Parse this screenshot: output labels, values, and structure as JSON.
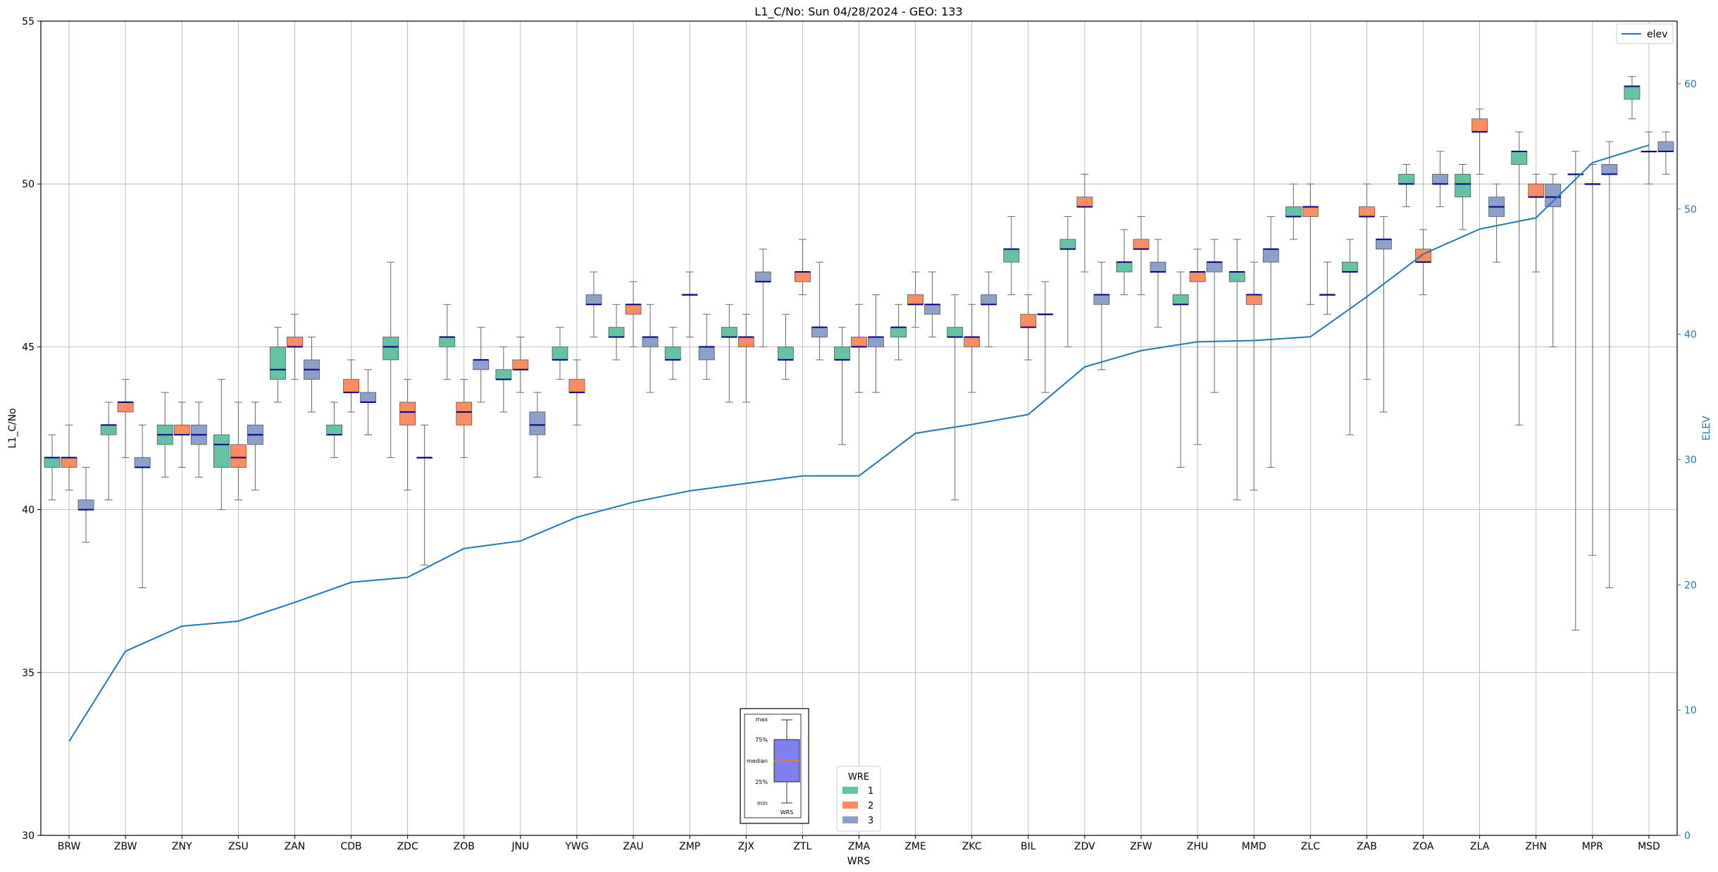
{
  "chart_data": {
    "type": "box",
    "title": "L1_C/No: Sun 04/28/2024 - GEO: 133",
    "xlabel": "WRS",
    "ylabel": "L1_C/No",
    "y2label": "ELEV",
    "ylim": [
      30,
      55
    ],
    "y2lim": [
      0,
      65
    ],
    "yticks": [
      30,
      35,
      40,
      45,
      50,
      55
    ],
    "y2ticks": [
      0,
      10,
      20,
      30,
      40,
      50,
      60
    ],
    "grid": true,
    "categories": [
      "BRW",
      "ZBW",
      "ZNY",
      "ZSU",
      "ZAN",
      "CDB",
      "ZDC",
      "ZOB",
      "JNU",
      "YWG",
      "ZAU",
      "ZMP",
      "ZJX",
      "ZTL",
      "ZMA",
      "ZME",
      "ZKC",
      "BIL",
      "ZDV",
      "ZFW",
      "ZHU",
      "MMD",
      "ZLC",
      "ZAB",
      "ZOA",
      "ZLA",
      "ZHN",
      "MPR",
      "MSD"
    ],
    "wre_colors": {
      "1": "#66c2a5",
      "2": "#fc8d62",
      "3": "#8da0cb"
    },
    "median_color": "#00008b",
    "boxes": [
      {
        "site": "BRW",
        "wre": 1,
        "min": 40.3,
        "q1": 41.3,
        "median": 41.6,
        "q3": 41.6,
        "max": 42.3
      },
      {
        "site": "BRW",
        "wre": 2,
        "min": 40.6,
        "q1": 41.3,
        "median": 41.6,
        "q3": 41.6,
        "max": 42.6
      },
      {
        "site": "BRW",
        "wre": 3,
        "min": 39.0,
        "q1": 40.0,
        "median": 40.0,
        "q3": 40.3,
        "max": 41.3
      },
      {
        "site": "ZBW",
        "wre": 1,
        "min": 40.3,
        "q1": 42.3,
        "median": 42.6,
        "q3": 42.6,
        "max": 43.3
      },
      {
        "site": "ZBW",
        "wre": 2,
        "min": 41.6,
        "q1": 43.0,
        "median": 43.3,
        "q3": 43.3,
        "max": 44.0
      },
      {
        "site": "ZBW",
        "wre": 3,
        "min": 37.6,
        "q1": 41.3,
        "median": 41.3,
        "q3": 41.6,
        "max": 42.6
      },
      {
        "site": "ZNY",
        "wre": 1,
        "min": 41.0,
        "q1": 42.0,
        "median": 42.3,
        "q3": 42.6,
        "max": 43.6
      },
      {
        "site": "ZNY",
        "wre": 2,
        "min": 41.3,
        "q1": 42.3,
        "median": 42.3,
        "q3": 42.6,
        "max": 43.3
      },
      {
        "site": "ZNY",
        "wre": 3,
        "min": 41.0,
        "q1": 42.0,
        "median": 42.3,
        "q3": 42.6,
        "max": 43.3
      },
      {
        "site": "ZSU",
        "wre": 1,
        "min": 40.0,
        "q1": 41.3,
        "median": 42.0,
        "q3": 42.3,
        "max": 44.0
      },
      {
        "site": "ZSU",
        "wre": 2,
        "min": 40.3,
        "q1": 41.3,
        "median": 41.6,
        "q3": 42.0,
        "max": 43.3
      },
      {
        "site": "ZSU",
        "wre": 3,
        "min": 40.6,
        "q1": 42.0,
        "median": 42.3,
        "q3": 42.6,
        "max": 43.3
      },
      {
        "site": "ZAN",
        "wre": 1,
        "min": 43.3,
        "q1": 44.0,
        "median": 44.3,
        "q3": 45.0,
        "max": 45.6
      },
      {
        "site": "ZAN",
        "wre": 2,
        "min": 44.0,
        "q1": 45.0,
        "median": 45.0,
        "q3": 45.3,
        "max": 46.0
      },
      {
        "site": "ZAN",
        "wre": 3,
        "min": 43.0,
        "q1": 44.0,
        "median": 44.3,
        "q3": 44.6,
        "max": 45.3
      },
      {
        "site": "CDB",
        "wre": 1,
        "min": 41.6,
        "q1": 42.3,
        "median": 42.3,
        "q3": 42.6,
        "max": 43.3
      },
      {
        "site": "CDB",
        "wre": 2,
        "min": 43.0,
        "q1": 43.6,
        "median": 43.6,
        "q3": 44.0,
        "max": 44.6
      },
      {
        "site": "CDB",
        "wre": 3,
        "min": 42.3,
        "q1": 43.3,
        "median": 43.3,
        "q3": 43.6,
        "max": 44.3
      },
      {
        "site": "ZDC",
        "wre": 1,
        "min": 41.6,
        "q1": 44.6,
        "median": 45.0,
        "q3": 45.3,
        "max": 47.6
      },
      {
        "site": "ZDC",
        "wre": 2,
        "min": 40.6,
        "q1": 42.6,
        "median": 43.0,
        "q3": 43.3,
        "max": 44.0
      },
      {
        "site": "ZDC",
        "wre": 3,
        "min": 38.3,
        "q1": 41.6,
        "median": 41.6,
        "q3": 41.6,
        "max": 42.6
      },
      {
        "site": "ZOB",
        "wre": 1,
        "min": 44.0,
        "q1": 45.0,
        "median": 45.3,
        "q3": 45.3,
        "max": 46.3
      },
      {
        "site": "ZOB",
        "wre": 2,
        "min": 41.6,
        "q1": 42.6,
        "median": 43.0,
        "q3": 43.3,
        "max": 44.0
      },
      {
        "site": "ZOB",
        "wre": 3,
        "min": 43.3,
        "q1": 44.3,
        "median": 44.6,
        "q3": 44.6,
        "max": 45.6
      },
      {
        "site": "JNU",
        "wre": 1,
        "min": 43.0,
        "q1": 44.0,
        "median": 44.0,
        "q3": 44.3,
        "max": 45.0
      },
      {
        "site": "JNU",
        "wre": 2,
        "min": 43.6,
        "q1": 44.3,
        "median": 44.3,
        "q3": 44.6,
        "max": 45.3
      },
      {
        "site": "JNU",
        "wre": 3,
        "min": 41.0,
        "q1": 42.3,
        "median": 42.6,
        "q3": 43.0,
        "max": 43.6
      },
      {
        "site": "YWG",
        "wre": 1,
        "min": 44.0,
        "q1": 44.6,
        "median": 44.6,
        "q3": 45.0,
        "max": 45.6
      },
      {
        "site": "YWG",
        "wre": 2,
        "min": 42.6,
        "q1": 43.6,
        "median": 43.6,
        "q3": 44.0,
        "max": 44.6
      },
      {
        "site": "YWG",
        "wre": 3,
        "min": 45.3,
        "q1": 46.3,
        "median": 46.3,
        "q3": 46.6,
        "max": 47.3
      },
      {
        "site": "ZAU",
        "wre": 1,
        "min": 44.6,
        "q1": 45.3,
        "median": 45.3,
        "q3": 45.6,
        "max": 46.3
      },
      {
        "site": "ZAU",
        "wre": 2,
        "min": 45.0,
        "q1": 46.0,
        "median": 46.3,
        "q3": 46.3,
        "max": 47.0
      },
      {
        "site": "ZAU",
        "wre": 3,
        "min": 43.6,
        "q1": 45.0,
        "median": 45.3,
        "q3": 45.3,
        "max": 46.3
      },
      {
        "site": "ZMP",
        "wre": 1,
        "min": 44.0,
        "q1": 44.6,
        "median": 44.6,
        "q3": 45.0,
        "max": 45.6
      },
      {
        "site": "ZMP",
        "wre": 2,
        "min": 45.3,
        "q1": 46.6,
        "median": 46.6,
        "q3": 46.6,
        "max": 47.3
      },
      {
        "site": "ZMP",
        "wre": 3,
        "min": 44.0,
        "q1": 44.6,
        "median": 45.0,
        "q3": 45.0,
        "max": 46.0
      },
      {
        "site": "ZJX",
        "wre": 1,
        "min": 43.3,
        "q1": 45.3,
        "median": 45.3,
        "q3": 45.6,
        "max": 46.3
      },
      {
        "site": "ZJX",
        "wre": 2,
        "min": 43.3,
        "q1": 45.0,
        "median": 45.3,
        "q3": 45.3,
        "max": 46.0
      },
      {
        "site": "ZJX",
        "wre": 3,
        "min": 45.0,
        "q1": 47.0,
        "median": 47.0,
        "q3": 47.3,
        "max": 48.0
      },
      {
        "site": "ZTL",
        "wre": 1,
        "min": 44.0,
        "q1": 44.6,
        "median": 44.6,
        "q3": 45.0,
        "max": 46.0
      },
      {
        "site": "ZTL",
        "wre": 2,
        "min": 46.6,
        "q1": 47.0,
        "median": 47.3,
        "q3": 47.3,
        "max": 48.3
      },
      {
        "site": "ZTL",
        "wre": 3,
        "min": 44.6,
        "q1": 45.3,
        "median": 45.6,
        "q3": 45.6,
        "max": 47.6
      },
      {
        "site": "ZMA",
        "wre": 1,
        "min": 42.0,
        "q1": 44.6,
        "median": 44.6,
        "q3": 45.0,
        "max": 45.6
      },
      {
        "site": "ZMA",
        "wre": 2,
        "min": 43.6,
        "q1": 45.0,
        "median": 45.0,
        "q3": 45.3,
        "max": 46.3
      },
      {
        "site": "ZMA",
        "wre": 3,
        "min": 43.6,
        "q1": 45.0,
        "median": 45.3,
        "q3": 45.3,
        "max": 46.6
      },
      {
        "site": "ZME",
        "wre": 1,
        "min": 44.6,
        "q1": 45.3,
        "median": 45.6,
        "q3": 45.6,
        "max": 46.3
      },
      {
        "site": "ZME",
        "wre": 2,
        "min": 45.6,
        "q1": 46.3,
        "median": 46.3,
        "q3": 46.6,
        "max": 47.3
      },
      {
        "site": "ZME",
        "wre": 3,
        "min": 45.3,
        "q1": 46.0,
        "median": 46.3,
        "q3": 46.3,
        "max": 47.3
      },
      {
        "site": "ZKC",
        "wre": 1,
        "min": 40.3,
        "q1": 45.3,
        "median": 45.3,
        "q3": 45.6,
        "max": 46.6
      },
      {
        "site": "ZKC",
        "wre": 2,
        "min": 43.6,
        "q1": 45.0,
        "median": 45.3,
        "q3": 45.3,
        "max": 46.3
      },
      {
        "site": "ZKC",
        "wre": 3,
        "min": 45.0,
        "q1": 46.3,
        "median": 46.3,
        "q3": 46.6,
        "max": 47.3
      },
      {
        "site": "BIL",
        "wre": 1,
        "min": 46.6,
        "q1": 47.6,
        "median": 48.0,
        "q3": 48.0,
        "max": 49.0
      },
      {
        "site": "BIL",
        "wre": 2,
        "min": 44.6,
        "q1": 45.6,
        "median": 45.6,
        "q3": 46.0,
        "max": 46.6
      },
      {
        "site": "BIL",
        "wre": 3,
        "min": 43.6,
        "q1": 46.0,
        "median": 46.0,
        "q3": 46.0,
        "max": 47.0
      },
      {
        "site": "ZDV",
        "wre": 1,
        "min": 45.0,
        "q1": 48.0,
        "median": 48.0,
        "q3": 48.3,
        "max": 49.0
      },
      {
        "site": "ZDV",
        "wre": 2,
        "min": 47.3,
        "q1": 49.3,
        "median": 49.3,
        "q3": 49.6,
        "max": 50.3
      },
      {
        "site": "ZDV",
        "wre": 3,
        "min": 44.3,
        "q1": 46.3,
        "median": 46.6,
        "q3": 46.6,
        "max": 47.6
      },
      {
        "site": "ZFW",
        "wre": 1,
        "min": 46.6,
        "q1": 47.3,
        "median": 47.6,
        "q3": 47.6,
        "max": 48.6
      },
      {
        "site": "ZFW",
        "wre": 2,
        "min": 46.6,
        "q1": 48.0,
        "median": 48.0,
        "q3": 48.3,
        "max": 49.0
      },
      {
        "site": "ZFW",
        "wre": 3,
        "min": 45.6,
        "q1": 47.3,
        "median": 47.3,
        "q3": 47.6,
        "max": 48.3
      },
      {
        "site": "ZHU",
        "wre": 1,
        "min": 41.3,
        "q1": 46.3,
        "median": 46.3,
        "q3": 46.6,
        "max": 47.3
      },
      {
        "site": "ZHU",
        "wre": 2,
        "min": 42.0,
        "q1": 47.0,
        "median": 47.3,
        "q3": 47.3,
        "max": 48.0
      },
      {
        "site": "ZHU",
        "wre": 3,
        "min": 43.6,
        "q1": 47.3,
        "median": 47.6,
        "q3": 47.6,
        "max": 48.3
      },
      {
        "site": "MMD",
        "wre": 1,
        "min": 40.3,
        "q1": 47.0,
        "median": 47.3,
        "q3": 47.3,
        "max": 48.3
      },
      {
        "site": "MMD",
        "wre": 2,
        "min": 40.6,
        "q1": 46.3,
        "median": 46.6,
        "q3": 46.6,
        "max": 47.6
      },
      {
        "site": "MMD",
        "wre": 3,
        "min": 41.3,
        "q1": 47.6,
        "median": 48.0,
        "q3": 48.0,
        "max": 49.0
      },
      {
        "site": "ZLC",
        "wre": 1,
        "min": 48.3,
        "q1": 49.0,
        "median": 49.0,
        "q3": 49.3,
        "max": 50.0
      },
      {
        "site": "ZLC",
        "wre": 2,
        "min": 46.3,
        "q1": 49.0,
        "median": 49.3,
        "q3": 49.3,
        "max": 50.0
      },
      {
        "site": "ZLC",
        "wre": 3,
        "min": 46.0,
        "q1": 46.6,
        "median": 46.6,
        "q3": 46.6,
        "max": 47.6
      },
      {
        "site": "ZAB",
        "wre": 1,
        "min": 42.3,
        "q1": 47.3,
        "median": 47.3,
        "q3": 47.6,
        "max": 48.3
      },
      {
        "site": "ZAB",
        "wre": 2,
        "min": 44.0,
        "q1": 49.0,
        "median": 49.0,
        "q3": 49.3,
        "max": 50.0
      },
      {
        "site": "ZAB",
        "wre": 3,
        "min": 43.0,
        "q1": 48.0,
        "median": 48.3,
        "q3": 48.3,
        "max": 49.0
      },
      {
        "site": "ZOA",
        "wre": 1,
        "min": 49.3,
        "q1": 50.0,
        "median": 50.0,
        "q3": 50.3,
        "max": 50.6
      },
      {
        "site": "ZOA",
        "wre": 2,
        "min": 46.6,
        "q1": 47.6,
        "median": 47.6,
        "q3": 48.0,
        "max": 48.6
      },
      {
        "site": "ZOA",
        "wre": 3,
        "min": 49.3,
        "q1": 50.0,
        "median": 50.0,
        "q3": 50.3,
        "max": 51.0
      },
      {
        "site": "ZLA",
        "wre": 1,
        "min": 48.6,
        "q1": 49.6,
        "median": 50.0,
        "q3": 50.3,
        "max": 50.6
      },
      {
        "site": "ZLA",
        "wre": 2,
        "min": 50.3,
        "q1": 51.6,
        "median": 51.6,
        "q3": 52.0,
        "max": 52.3
      },
      {
        "site": "ZLA",
        "wre": 3,
        "min": 47.6,
        "q1": 49.0,
        "median": 49.3,
        "q3": 49.6,
        "max": 50.0
      },
      {
        "site": "ZHN",
        "wre": 1,
        "min": 42.6,
        "q1": 50.6,
        "median": 51.0,
        "q3": 51.0,
        "max": 51.6
      },
      {
        "site": "ZHN",
        "wre": 2,
        "min": 47.3,
        "q1": 49.6,
        "median": 49.6,
        "q3": 50.0,
        "max": 50.3
      },
      {
        "site": "ZHN",
        "wre": 3,
        "min": 45.0,
        "q1": 49.3,
        "median": 49.6,
        "q3": 50.0,
        "max": 50.3
      },
      {
        "site": "MPR",
        "wre": 1,
        "min": 36.3,
        "q1": 50.3,
        "median": 50.3,
        "q3": 50.3,
        "max": 51.0
      },
      {
        "site": "MPR",
        "wre": 2,
        "min": 38.6,
        "q1": 50.0,
        "median": 50.0,
        "q3": 50.0,
        "max": 50.6
      },
      {
        "site": "MPR",
        "wre": 3,
        "min": 37.6,
        "q1": 50.3,
        "median": 50.3,
        "q3": 50.6,
        "max": 51.3
      },
      {
        "site": "MSD",
        "wre": 1,
        "min": 52.0,
        "q1": 52.6,
        "median": 53.0,
        "q3": 53.0,
        "max": 53.3
      },
      {
        "site": "MSD",
        "wre": 2,
        "min": 50.0,
        "q1": 51.0,
        "median": 51.0,
        "q3": 51.0,
        "max": 51.6
      },
      {
        "site": "MSD",
        "wre": 3,
        "min": 50.3,
        "q1": 51.0,
        "median": 51.0,
        "q3": 51.3,
        "max": 51.6
      }
    ],
    "series": [
      {
        "name": "elev",
        "axis": "right",
        "color": "#1f77b4",
        "values": [
          7.5,
          14.7,
          16.7,
          17.1,
          18.6,
          20.2,
          20.6,
          22.9,
          23.5,
          25.4,
          26.6,
          27.5,
          28.1,
          28.7,
          28.7,
          32.1,
          32.8,
          33.6,
          37.4,
          38.7,
          39.4,
          39.5,
          39.8,
          43.0,
          46.4,
          48.4,
          49.3,
          53.7,
          55.1
        ]
      }
    ],
    "legend": {
      "entries": [
        "elev"
      ],
      "placement": "top-right"
    },
    "wre_legend": {
      "title": "WRE",
      "entries": [
        "1",
        "2",
        "3"
      ],
      "placement": "bottom-center"
    },
    "key_box": {
      "labels": [
        "max",
        "75%",
        "median",
        "25%",
        "min"
      ],
      "xlabel": "WRS",
      "placement": "bottom-center"
    }
  }
}
